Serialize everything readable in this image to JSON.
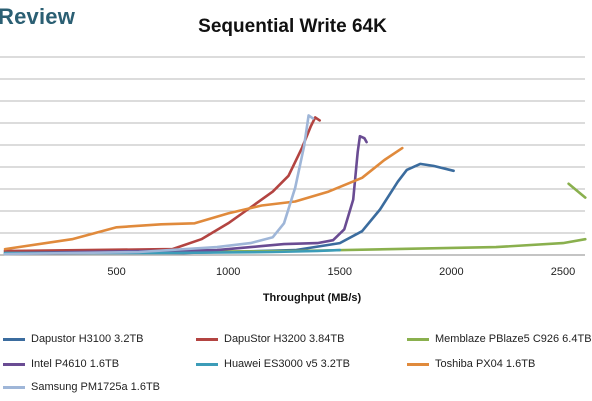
{
  "brand": "Review",
  "colors": {
    "background": "#ffffff",
    "gridline": "#b8b8b8",
    "brand": "#2b5f73"
  },
  "chart_data": {
    "type": "line",
    "title": "Sequential Write 64K",
    "xlabel": "Throughput (MB/s)",
    "ylabel": "",
    "xlim": [
      0,
      2600
    ],
    "ylim": [
      0,
      10
    ],
    "x_ticks": [
      500,
      1000,
      1500,
      2000,
      2500
    ],
    "grid": true,
    "legend_position": "bottom",
    "series": [
      {
        "name": "Dapustor H3100 3.2TB",
        "color": "#3b6c9e",
        "points": [
          [
            0,
            0.2
          ],
          [
            800,
            0.1
          ],
          [
            1300,
            0.25
          ],
          [
            1500,
            0.6
          ],
          [
            1600,
            1.2
          ],
          [
            1680,
            2.3
          ],
          [
            1760,
            3.7
          ],
          [
            1800,
            4.3
          ],
          [
            1860,
            4.6
          ],
          [
            1920,
            4.5
          ],
          [
            2010,
            4.25
          ]
        ]
      },
      {
        "name": "DapuStor H3200 3.84TB",
        "color": "#b34441",
        "points": [
          [
            0,
            0.2
          ],
          [
            750,
            0.3
          ],
          [
            880,
            0.8
          ],
          [
            1000,
            1.6
          ],
          [
            1100,
            2.4
          ],
          [
            1200,
            3.2
          ],
          [
            1270,
            4.0
          ],
          [
            1330,
            5.4
          ],
          [
            1370,
            6.5
          ],
          [
            1390,
            6.95
          ],
          [
            1410,
            6.8
          ]
        ]
      },
      {
        "name": "Memblaze PBlaze5 C926 6.4TB",
        "color": "#8ab04e",
        "points": [
          [
            0,
            0.1
          ],
          [
            1300,
            0.2
          ],
          [
            2200,
            0.4
          ],
          [
            2500,
            0.6
          ],
          [
            2600,
            0.8
          ]
        ],
        "extra_points": [
          [
            2525,
            3.6
          ],
          [
            2600,
            2.9
          ]
        ]
      },
      {
        "name": "Intel P4610 1.6TB",
        "color": "#6a4c93",
        "points": [
          [
            0,
            0.1
          ],
          [
            950,
            0.25
          ],
          [
            1150,
            0.45
          ],
          [
            1250,
            0.55
          ],
          [
            1400,
            0.6
          ],
          [
            1470,
            0.75
          ],
          [
            1520,
            1.3
          ],
          [
            1560,
            2.8
          ],
          [
            1580,
            5.2
          ],
          [
            1590,
            6.0
          ],
          [
            1610,
            5.9
          ],
          [
            1620,
            5.7
          ]
        ]
      },
      {
        "name": "Huawei ES3000 v5 3.2TB",
        "color": "#3c9cb8",
        "points": [
          [
            0,
            0.1
          ],
          [
            700,
            0.1
          ],
          [
            1200,
            0.15
          ],
          [
            1400,
            0.2
          ],
          [
            1500,
            0.25
          ]
        ]
      },
      {
        "name": "Toshiba PX04 1.6TB",
        "color": "#e08a3c",
        "points": [
          [
            0,
            0.3
          ],
          [
            300,
            0.8
          ],
          [
            500,
            1.4
          ],
          [
            700,
            1.55
          ],
          [
            850,
            1.6
          ],
          [
            1000,
            2.1
          ],
          [
            1150,
            2.5
          ],
          [
            1300,
            2.7
          ],
          [
            1450,
            3.2
          ],
          [
            1600,
            3.9
          ],
          [
            1700,
            4.8
          ],
          [
            1780,
            5.4
          ]
        ]
      },
      {
        "name": "Samsung PM1725a 1.6TB",
        "color": "#9fb6d8",
        "points": [
          [
            0,
            0.05
          ],
          [
            600,
            0.15
          ],
          [
            950,
            0.4
          ],
          [
            1100,
            0.6
          ],
          [
            1200,
            0.9
          ],
          [
            1250,
            1.6
          ],
          [
            1300,
            3.4
          ],
          [
            1340,
            5.5
          ],
          [
            1360,
            7.05
          ],
          [
            1380,
            6.9
          ]
        ]
      }
    ]
  }
}
